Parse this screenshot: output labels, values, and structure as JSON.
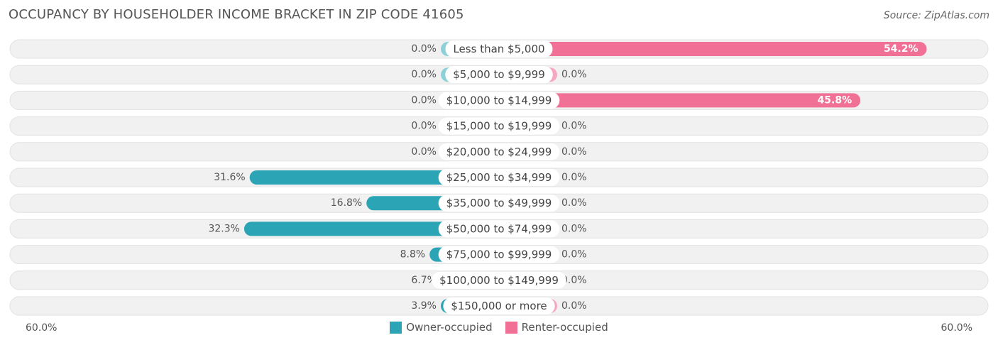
{
  "title": "OCCUPANCY BY HOUSEHOLDER INCOME BRACKET IN ZIP CODE 41605",
  "source": "Source: ZipAtlas.com",
  "axis": {
    "left_label": "60.0%",
    "right_label": "60.0%"
  },
  "legend": {
    "owner": "Owner-occupied",
    "renter": "Renter-occupied"
  },
  "colors": {
    "owner_strong": "#2ba5b6",
    "owner_light": "#8dd1d8",
    "renter_strong": "#f07096",
    "renter_light": "#f7a8c1",
    "row_bg": "#f1f1f1"
  },
  "chart_data": {
    "type": "bar",
    "orientation": "horizontal-diverging",
    "xlim": [
      -60,
      60
    ],
    "categories": [
      "Less than $5,000",
      "$5,000 to $9,999",
      "$10,000 to $14,999",
      "$15,000 to $19,999",
      "$20,000 to $24,999",
      "$25,000 to $34,999",
      "$35,000 to $49,999",
      "$50,000 to $74,999",
      "$75,000 to $99,999",
      "$100,000 to $149,999",
      "$150,000 or more"
    ],
    "series": [
      {
        "name": "Owner-occupied",
        "values": [
          0.0,
          0.0,
          0.0,
          0.0,
          0.0,
          31.6,
          16.8,
          32.3,
          8.8,
          6.7,
          3.9
        ],
        "labels": [
          "0.0%",
          "0.0%",
          "0.0%",
          "0.0%",
          "0.0%",
          "31.6%",
          "16.8%",
          "32.3%",
          "8.8%",
          "6.7%",
          "3.9%"
        ]
      },
      {
        "name": "Renter-occupied",
        "values": [
          54.2,
          0.0,
          45.8,
          0.0,
          0.0,
          0.0,
          0.0,
          0.0,
          0.0,
          0.0,
          0.0
        ],
        "labels": [
          "54.2%",
          "0.0%",
          "45.8%",
          "0.0%",
          "0.0%",
          "0.0%",
          "0.0%",
          "0.0%",
          "0.0%",
          "0.0%",
          "0.0%"
        ]
      }
    ]
  }
}
